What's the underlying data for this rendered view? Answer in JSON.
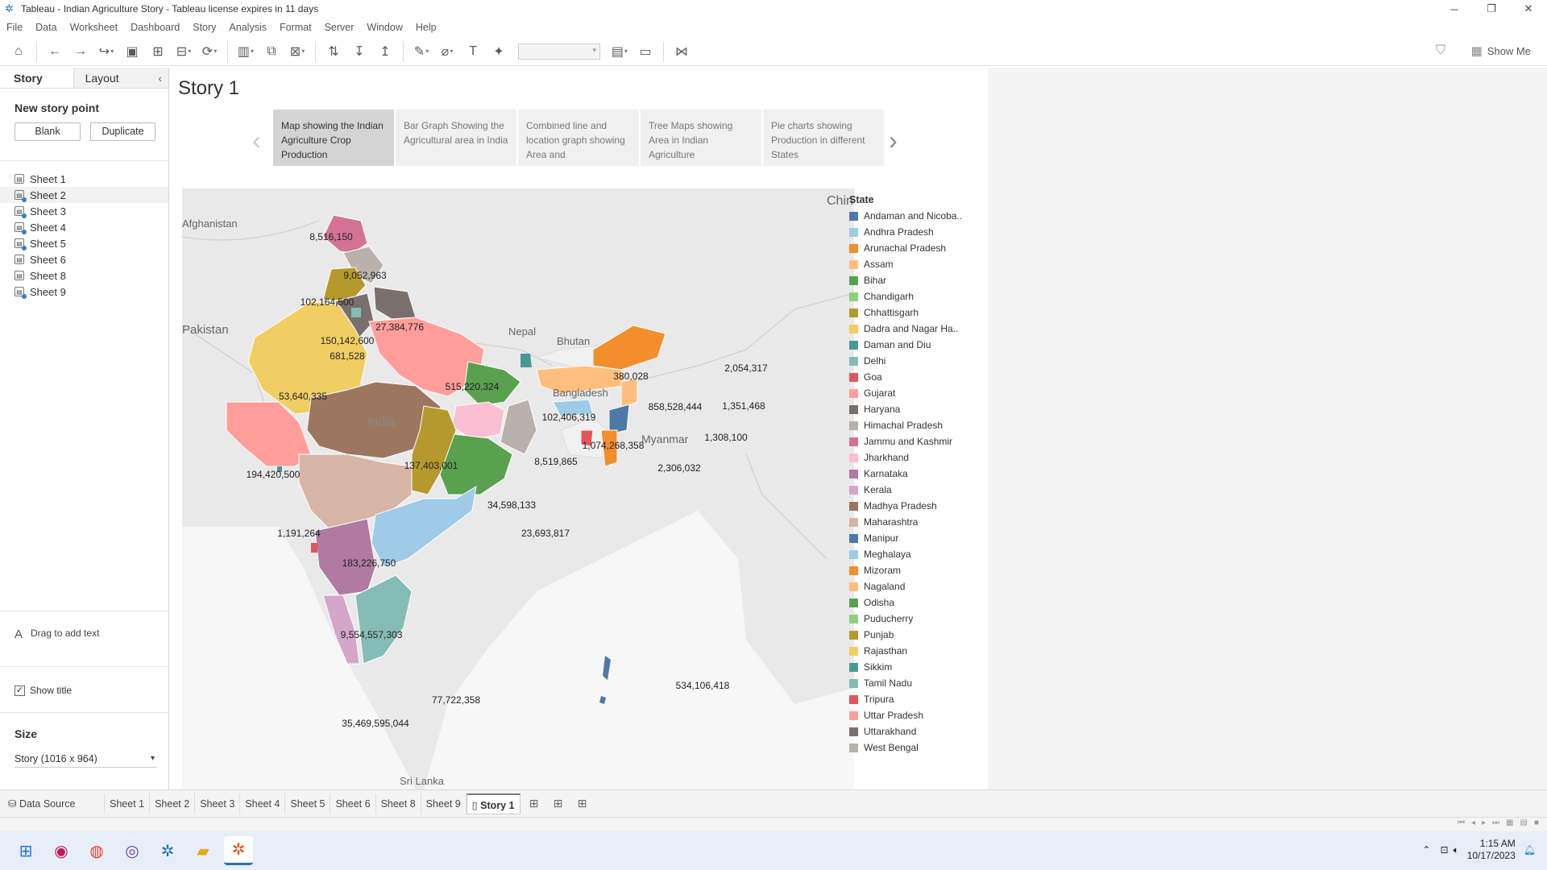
{
  "window": {
    "title": "Tableau - Indian Agriculture Story - Tableau license expires in 11 days"
  },
  "menu": [
    "File",
    "Data",
    "Worksheet",
    "Dashboard",
    "Story",
    "Analysis",
    "Format",
    "Server",
    "Window",
    "Help"
  ],
  "toolbar": {
    "show_me": "Show Me"
  },
  "side": {
    "tab_story": "Story",
    "tab_layout": "Layout",
    "new_story_point": "New story point",
    "blank": "Blank",
    "duplicate": "Duplicate",
    "sheets": [
      "Sheet 1",
      "Sheet 2",
      "Sheet 3",
      "Sheet 4",
      "Sheet 5",
      "Sheet 6",
      "Sheet 8",
      "Sheet 9"
    ],
    "drag_text": "Drag to add text",
    "show_title": "Show title",
    "size_label": "Size",
    "size_value": "Story (1016 x 964)"
  },
  "story": {
    "title": "Story 1",
    "points": [
      "Map showing the Indian Agriculture Crop Production",
      "Bar Graph Showing the Agricultural area in India",
      "Combined line and location graph showing Area and",
      "Tree Maps showing Area in Indian Agriculture",
      "Pie charts showing Production in different States"
    ]
  },
  "map": {
    "place_labels": [
      "China",
      "Afghanistan",
      "Pakistan",
      "Nepal",
      "Bhutan",
      "Bangladesh",
      "India",
      "Myanmar",
      "Sri Lanka"
    ],
    "values": {
      "jk": "8,516,150",
      "hp": "9,052,963",
      "pb": "102,164,500",
      "hr": "150,142,600",
      "dl": "681,528",
      "uk": "27,384,776",
      "up": "515,220,324",
      "rj": "53,640,335",
      "gj": "194,420,500",
      "dd": "1,191,264",
      "mp": "137,403,001",
      "ct": "34,598,133",
      "br": "102,406,319",
      "jh": "8,519,865",
      "wb": "1,074,268,358",
      "od": "23,693,817",
      "mh": "183,226,750",
      "ka": "9,554,557,303",
      "kl": "35,469,595,044",
      "tn": "77,722,358",
      "an": "534,106,418",
      "sk": "380,028",
      "ar": "2,054,317",
      "as": "858,528,444",
      "nl": "1,351,468",
      "mn": "1,308,100",
      "tr": "2,306,032"
    }
  },
  "legend": {
    "title": "State",
    "items": [
      {
        "label": "Andaman and Nicoba..",
        "color": "#4e79a7"
      },
      {
        "label": "Andhra Pradesh",
        "color": "#a0cbe8"
      },
      {
        "label": "Arunachal Pradesh",
        "color": "#f28e2b"
      },
      {
        "label": "Assam",
        "color": "#ffbe7d"
      },
      {
        "label": "Bihar",
        "color": "#59a14f"
      },
      {
        "label": "Chandigarh",
        "color": "#8cd17d"
      },
      {
        "label": "Chhattisgarh",
        "color": "#b6992d"
      },
      {
        "label": "Dadra and Nagar Ha..",
        "color": "#f1ce63"
      },
      {
        "label": "Daman and Diu",
        "color": "#499894"
      },
      {
        "label": "Delhi",
        "color": "#86bcb6"
      },
      {
        "label": "Goa",
        "color": "#e15759"
      },
      {
        "label": "Gujarat",
        "color": "#ff9d9a"
      },
      {
        "label": "Haryana",
        "color": "#79706e"
      },
      {
        "label": "Himachal Pradesh",
        "color": "#bab0ac"
      },
      {
        "label": "Jammu and Kashmir",
        "color": "#d37295"
      },
      {
        "label": "Jharkhand",
        "color": "#fabfd2"
      },
      {
        "label": "Karnataka",
        "color": "#b07aa1"
      },
      {
        "label": "Kerala",
        "color": "#d4a6c8"
      },
      {
        "label": "Madhya Pradesh",
        "color": "#9d7660"
      },
      {
        "label": "Maharashtra",
        "color": "#d7b5a6"
      },
      {
        "label": "Manipur",
        "color": "#4e79a7"
      },
      {
        "label": "Meghalaya",
        "color": "#a0cbe8"
      },
      {
        "label": "Mizoram",
        "color": "#f28e2b"
      },
      {
        "label": "Nagaland",
        "color": "#ffbe7d"
      },
      {
        "label": "Odisha",
        "color": "#59a14f"
      },
      {
        "label": "Puducherry",
        "color": "#8cd17d"
      },
      {
        "label": "Punjab",
        "color": "#b6992d"
      },
      {
        "label": "Rajasthan",
        "color": "#f1ce63"
      },
      {
        "label": "Sikkim",
        "color": "#499894"
      },
      {
        "label": "Tamil Nadu",
        "color": "#86bcb6"
      },
      {
        "label": "Tripura",
        "color": "#e15759"
      },
      {
        "label": "Uttar Pradesh",
        "color": "#ff9d9a"
      },
      {
        "label": "Uttarakhand",
        "color": "#79706e"
      },
      {
        "label": "West Bengal",
        "color": "#bab0ac"
      }
    ]
  },
  "tabs": {
    "data_source": "Data Source",
    "sheets": [
      "Sheet 1",
      "Sheet 2",
      "Sheet 3",
      "Sheet 4",
      "Sheet 5",
      "Sheet 6",
      "Sheet 8",
      "Sheet 9"
    ],
    "story": "Story 1"
  },
  "taskbar": {
    "time": "1:15 AM",
    "date": "10/17/2023"
  }
}
